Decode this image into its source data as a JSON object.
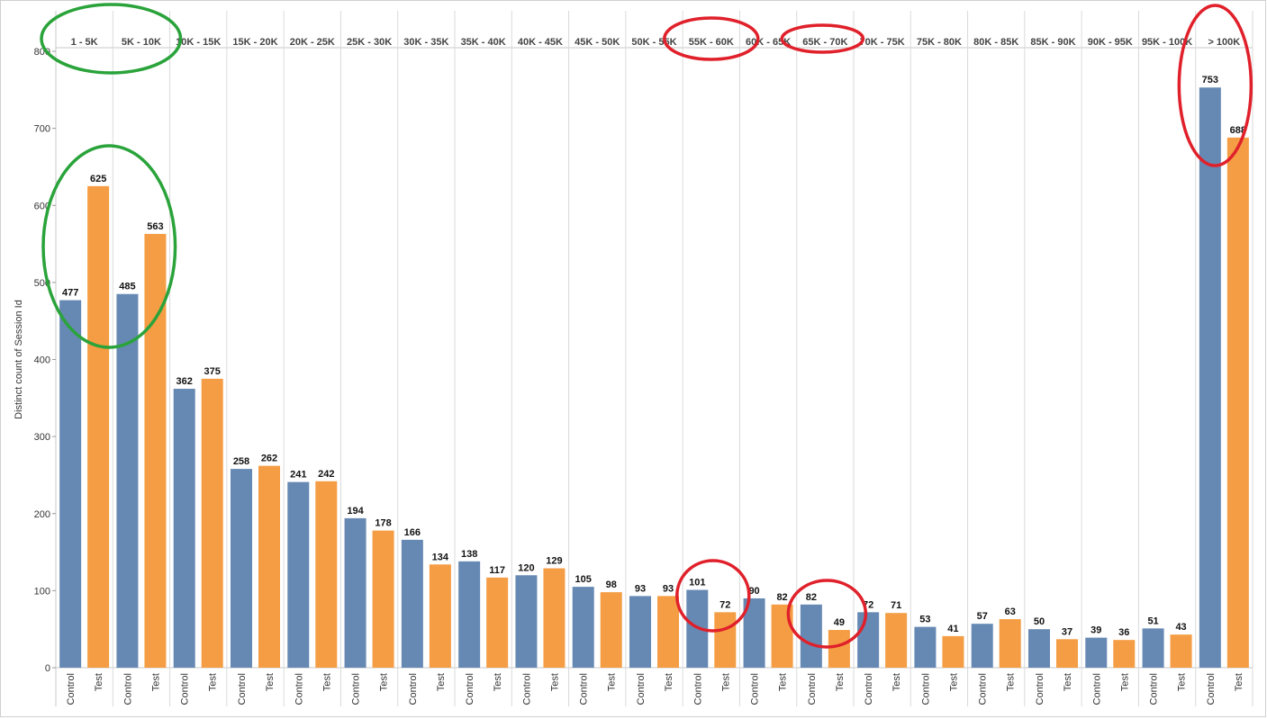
{
  "chart_data": {
    "type": "bar",
    "ylabel": "Distinct count of Session Id",
    "ylim": [
      0,
      800
    ],
    "y_ticks": [
      0,
      100,
      200,
      300,
      400,
      500,
      600,
      700,
      800
    ],
    "y_tick_labels": [
      "0",
      "100",
      "200",
      "300",
      "400",
      "500",
      "600",
      "700",
      "800"
    ],
    "grid": "vertical separators only",
    "categories": [
      "1 - 5K",
      "5K - 10K",
      "10K - 15K",
      "15K - 20K",
      "20K - 25K",
      "25K - 30K",
      "30K - 35K",
      "35K - 40K",
      "40K - 45K",
      "45K - 50K",
      "50K - 55K",
      "55K - 60K",
      "60K - 65K",
      "65K - 70K",
      "70K - 75K",
      "75K - 80K",
      "80K - 85K",
      "85K - 90K",
      "90K - 95K",
      "95K - 100K",
      "> 100K"
    ],
    "groups": [
      "Control",
      "Test"
    ],
    "series": [
      {
        "name": "Control",
        "color": "#6689b4",
        "values": [
          477,
          485,
          362,
          258,
          241,
          194,
          166,
          138,
          120,
          105,
          93,
          101,
          90,
          82,
          72,
          53,
          57,
          50,
          39,
          51,
          753
        ]
      },
      {
        "name": "Test",
        "color": "#f59d44",
        "values": [
          625,
          563,
          375,
          262,
          242,
          178,
          134,
          117,
          129,
          98,
          93,
          72,
          82,
          49,
          71,
          41,
          63,
          37,
          36,
          43,
          688
        ]
      }
    ],
    "annotations": {
      "green_ellipses": [
        "1 - 5K",
        "5K - 10K"
      ],
      "red_ellipses": [
        "55K - 60K",
        "65K - 70K",
        "> 100K"
      ],
      "green_color": "#2aa33a",
      "red_color": "#e0202a"
    }
  }
}
